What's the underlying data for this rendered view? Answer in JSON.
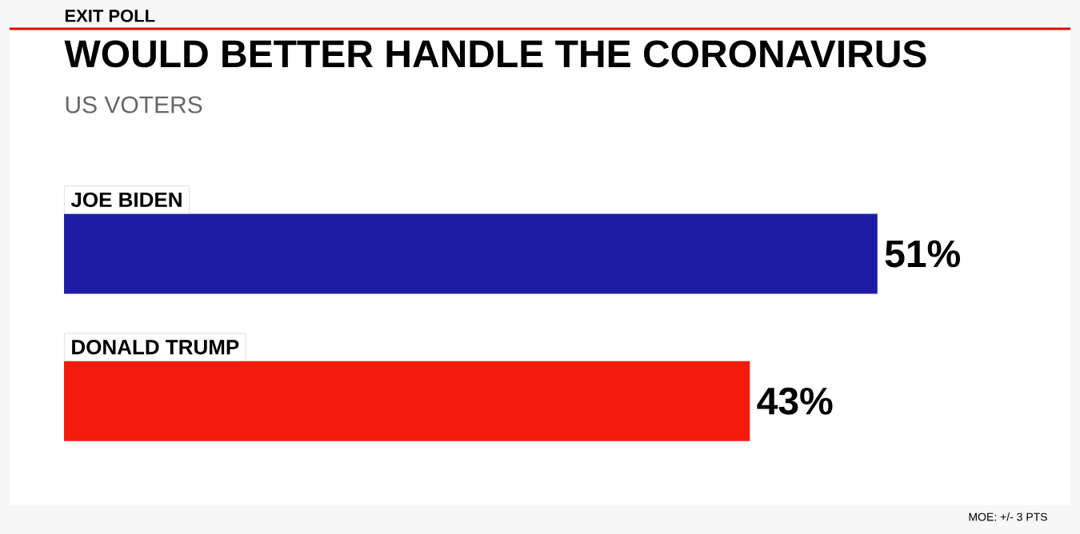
{
  "chart_data": {
    "type": "bar",
    "orientation": "horizontal",
    "title": "WOULD BETTER HANDLE THE CORONAVIRUS",
    "subtitle": "US VOTERS",
    "categories": [
      "JOE BIDEN",
      "DONALD TRUMP"
    ],
    "values": [
      51,
      43
    ],
    "colors": [
      "#1e1ca6",
      "#f41a0c"
    ],
    "value_labels": [
      "51%",
      "43%"
    ],
    "tick_labels": "y",
    "annotations": [
      "EXIT POLL",
      "MOE: +/- 3 PTS"
    ]
  }
}
